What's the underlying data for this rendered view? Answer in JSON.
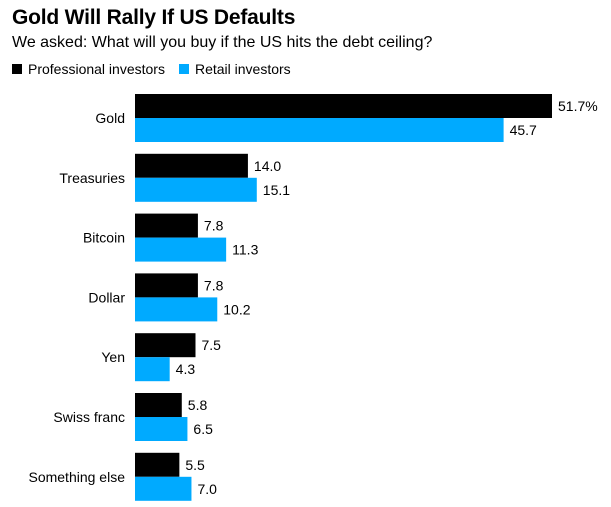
{
  "chart_data": {
    "type": "bar",
    "orientation": "horizontal",
    "title": "Gold Will Rally If US Defaults",
    "subtitle": "We asked: What will you buy if the US hits the debt ceiling?",
    "categories": [
      "Gold",
      "Treasuries",
      "Bitcoin",
      "Dollar",
      "Yen",
      "Swiss franc",
      "Something else"
    ],
    "series": [
      {
        "name": "Professional investors",
        "color": "#000000",
        "values": [
          51.7,
          14.0,
          7.8,
          7.8,
          7.5,
          5.8,
          5.5
        ],
        "labels": [
          "51.7%",
          "14.0",
          "7.8",
          "7.8",
          "7.5",
          "5.8",
          "5.5"
        ]
      },
      {
        "name": "Retail investors",
        "color": "#00aaff",
        "values": [
          45.7,
          15.1,
          11.3,
          10.2,
          4.3,
          6.5,
          7.0
        ],
        "labels": [
          "45.7",
          "15.1",
          "11.3",
          "10.2",
          "4.3",
          "6.5",
          "7.0"
        ]
      }
    ],
    "xlim": [
      0,
      51.7
    ],
    "legend_position": "top-left",
    "grid": false
  }
}
